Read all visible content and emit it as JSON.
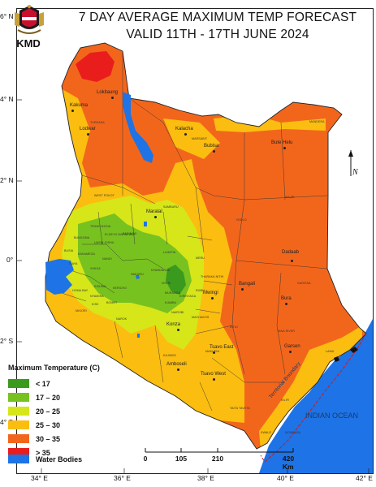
{
  "title": {
    "line1": "7 DAY AVERAGE MAXIMUM TEMP FORECAST",
    "line2": "VALID 11TH - 17TH JUNE  2024"
  },
  "logo": {
    "text": "KMD",
    "icon": "kmd-coat-of-arms-icon"
  },
  "axes": {
    "y_labels": [
      "6° N",
      "4° N",
      "2° N",
      "0°",
      "2° S",
      "4° S"
    ],
    "x_labels": [
      "34° E",
      "36° E",
      "38° E",
      "40° E",
      "42° E"
    ]
  },
  "legend": {
    "title": "Maximum Temperature (C)",
    "items": [
      {
        "label": "< 17",
        "color": "#3a9a1e"
      },
      {
        "label": "17 – 20",
        "color": "#78c21f"
      },
      {
        "label": "20 – 25",
        "color": "#d6e619"
      },
      {
        "label": "25 – 30",
        "color": "#fbbd10"
      },
      {
        "label": "30 – 35",
        "color": "#f2661c"
      },
      {
        "label": "> 35",
        "color": "#ea1d1d"
      }
    ],
    "water": {
      "label": "Water Bodies",
      "color": "#1e73e6"
    }
  },
  "scale_bar": {
    "labels": [
      "0",
      "105",
      "210",
      "420 Km"
    ]
  },
  "places": {
    "lokitaung": "Lokitaung",
    "kakuma": "Kakuma",
    "lodwar": "Lodwar",
    "kalacha": "Kalacha",
    "bubisa": "Bubisa",
    "bute_helu": "Bute Helu",
    "maralal": "Maralal",
    "dadaab": "Dadaab",
    "mwingi": "Mwingi",
    "bangali": "Bangali",
    "bura": "Bura",
    "konza": "Konza",
    "tsavo_east": "Tsavo East",
    "garsen": "Garsen",
    "amboseli": "Amboseli",
    "tsavo_west": "Tsavo West"
  },
  "counties": {
    "turkana": "TURKANA",
    "marsabit": "MARSABIT",
    "mandera": "MANDERA",
    "wajir": "WAJIR",
    "samburu": "SAMBURU",
    "isiolo": "ISIOLO",
    "garissa": "GARISSA",
    "west_pokot": "WEST POKOT",
    "baringo": "BARINGO",
    "meru": "MERU",
    "laikipia": "LAIKIPIA",
    "nyandarua": "NYANDARUA",
    "kirinyaga": "KIRINYAGA",
    "embu": "EMBU",
    "kitui": "KITUI",
    "machakos": "MACHAKOS",
    "makueni": "MAKUENI",
    "kajiado": "KAJIADO",
    "narok": "NAROK",
    "nakuru": "NAKURU",
    "kisumu": "KISUMU",
    "siaya": "SIAYA",
    "migori": "MIGORI",
    "nairobi": "NAIROBI",
    "kiambu": "KIAMBU",
    "tana_river": "TANA RIVER",
    "lamu": "LAMU",
    "kilifi": "KILIFI",
    "taita_taveta": "TAITA TAVETA",
    "kwale": "KWALE",
    "mombasa": "MOMBASA",
    "uasin_gishu": "UASIN GISHU",
    "trans_nzoia": "TRANS NZOIA",
    "bungoma": "BUNGOMA",
    "kakamega": "KAKAMEGA",
    "vihiga": "VIHIGA",
    "bomet": "BOMET",
    "kericho": "KERICHO",
    "nyamira": "NYAMIRA",
    "kisii": "KISII",
    "homa_bay": "HOMA BAY",
    "nandi": "NANDI",
    "elgeyo_marakwet": "ELGEYO MARAKWET",
    "busia": "BUSIA",
    "muranga": "MURANGA",
    "tharaka_nithi": "THARAKA NITHI",
    "nyeri": "NYERI"
  },
  "ocean_label": "INDIAN OCEAN",
  "boundary_label": "Territorial Boundary"
}
